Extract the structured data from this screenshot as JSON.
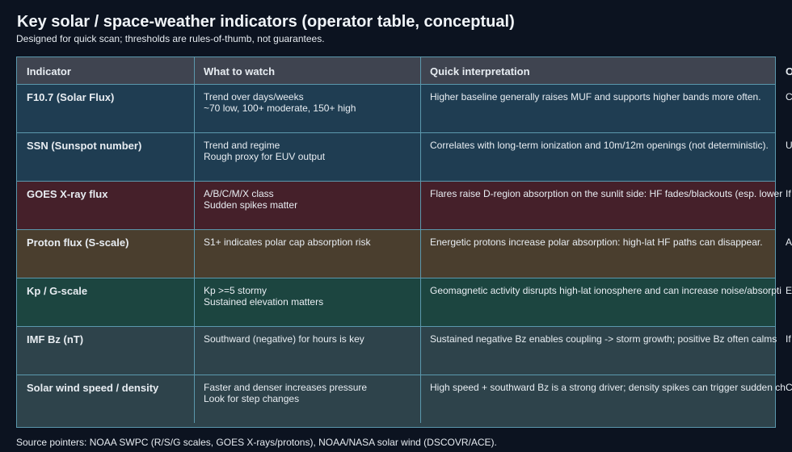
{
  "title": "Key solar / space-weather indicators (operator table, conceptual)",
  "subtitle": "Designed for quick scan; thresholds are rules-of-thumb, not guarantees.",
  "colors": {
    "background": "#0c1320",
    "border": "#5b98ad",
    "header": "#3f4450"
  },
  "table": {
    "headers": [
      "Indicator",
      "What to watch",
      "Quick interpretation",
      "O"
    ],
    "rows": [
      {
        "indicator": "F10.7 (Solar Flux)",
        "watch": [
          "Trend over days/weeks",
          "~70 low, 100+ moderate, 150+ high"
        ],
        "interpretation": "Higher baseline generally raises MUF and supports higher bands more often.",
        "col4": "C",
        "color": "#1f3d52"
      },
      {
        "indicator": "SSN (Sunspot number)",
        "watch": [
          "Trend and regime",
          "Rough proxy for EUV output"
        ],
        "interpretation": "Correlates with long-term ionization and 10m/12m openings (not deterministic).",
        "col4": "U",
        "color": "#1f3d52"
      },
      {
        "indicator": "GOES X-ray flux",
        "watch": [
          "A/B/C/M/X class",
          "Sudden spikes matter"
        ],
        "interpretation": "Flares raise D-region absorption on the sunlit side: HF fades/blackouts (esp. lower",
        "col4": "If",
        "color": "#45202a"
      },
      {
        "indicator": "Proton flux (S-scale)",
        "watch": [
          "S1+ indicates polar cap absorption risk",
          ""
        ],
        "interpretation": "Energetic protons increase polar absorption: high-lat HF paths can disappear.",
        "col4": "A",
        "color": "#4a3e2e"
      },
      {
        "indicator": "Kp / G-scale",
        "watch": [
          "Kp >=5 stormy",
          "Sustained elevation matters"
        ],
        "interpretation": "Geomagnetic activity disrupts high-lat ionosphere and can increase noise/absorpti",
        "col4": "E",
        "color": "#1c4540"
      },
      {
        "indicator": "IMF Bz (nT)",
        "watch": [
          "Southward (negative) for hours is key",
          ""
        ],
        "interpretation": "Sustained negative Bz enables coupling -> storm growth; positive Bz often calms",
        "col4": "If",
        "color": "#2e434b"
      },
      {
        "indicator": "Solar wind speed / density",
        "watch": [
          "Faster and denser increases pressure",
          "Look for step changes"
        ],
        "interpretation": "High speed + southward Bz is a strong driver; density spikes can trigger sudden ch",
        "col4": "C",
        "color": "#2e434b"
      }
    ]
  },
  "footer": "Source pointers: NOAA SWPC (R/S/G scales, GOES X-rays/protons), NOAA/NASA solar wind (DSCOVR/ACE)."
}
